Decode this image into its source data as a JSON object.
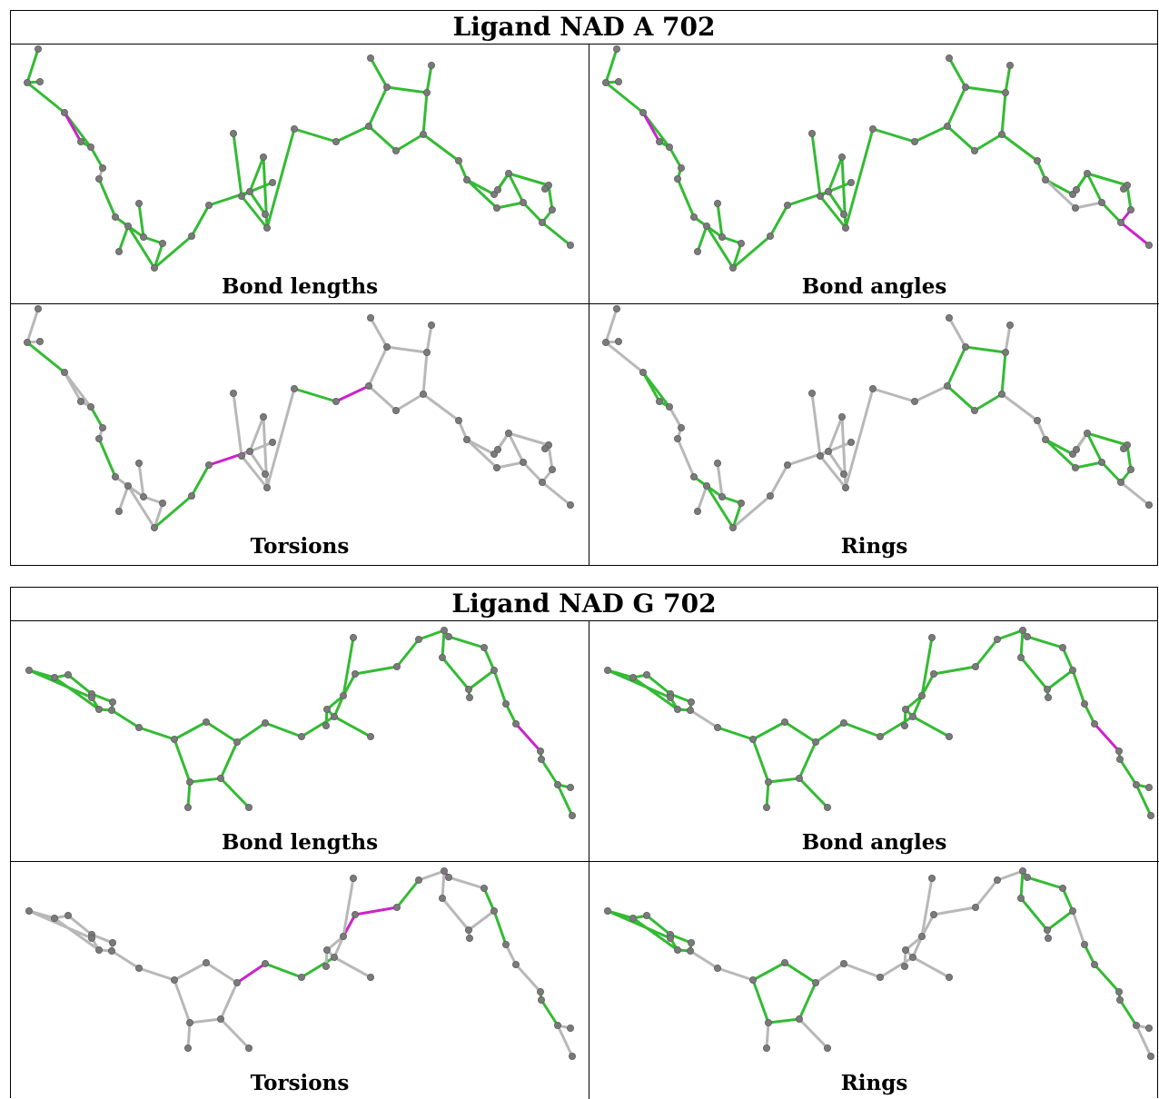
{
  "blocks": [
    {
      "title": "Ligand NAD A 702",
      "panels": [
        {
          "caption": "Bond lengths"
        },
        {
          "caption": "Bond angles"
        },
        {
          "caption": "Torsions"
        },
        {
          "caption": "Rings"
        }
      ]
    },
    {
      "title": "Ligand NAD G 702",
      "panels": [
        {
          "caption": "Bond lengths"
        },
        {
          "caption": "Bond angles"
        },
        {
          "caption": "Torsions"
        },
        {
          "caption": "Rings"
        }
      ]
    }
  ],
  "colors": {
    "good_bond": "#33bb33",
    "outlier_bond": "#cc22cc",
    "unassessed_bond": "#b8b8b8",
    "atom": "#7a7a7a"
  }
}
